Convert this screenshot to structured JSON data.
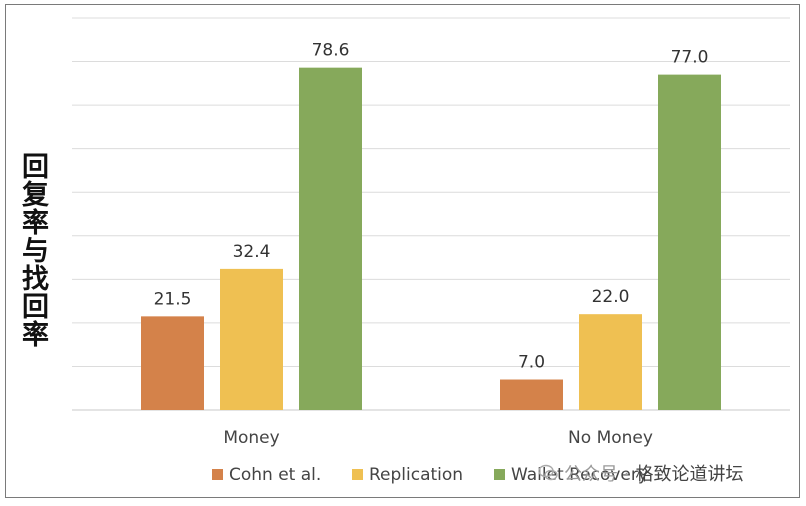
{
  "chart_data": {
    "type": "bar",
    "title": "",
    "xlabel": "",
    "ylabel": "回复率与找回率",
    "categories": [
      "Money",
      "No Money"
    ],
    "series": [
      {
        "name": "Cohn et al.",
        "values": [
          21.5,
          7.0
        ],
        "color": "#d4824a"
      },
      {
        "name": "Replication",
        "values": [
          32.4,
          22.0
        ],
        "color": "#efc052"
      },
      {
        "name": "Wallet Recovery",
        "values": [
          78.6,
          77.0
        ],
        "color": "#86a95b"
      }
    ],
    "ylim": [
      0,
      90
    ],
    "grid": true,
    "legend": "bottom",
    "data_labels": true
  },
  "watermark": {
    "text_faded": "公众号 ·",
    "text": "格致论道讲坛",
    "icon": "chat-bubble-icon"
  }
}
